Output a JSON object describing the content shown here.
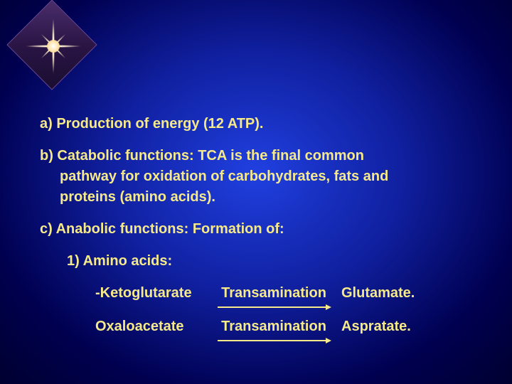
{
  "slide": {
    "text_color": "#f5e98a",
    "background": {
      "gradient": [
        "#2040e0",
        "#1020a0",
        "#000050",
        "#000030"
      ]
    },
    "decoration": {
      "type": "diamond-sparkle",
      "diamond_color": "#2a1545",
      "sparkle_color": "#ffffff"
    },
    "font": {
      "family": "Arial",
      "weight": "bold",
      "size_pt": 20
    },
    "items": {
      "a": "a) Production of energy (12 ATP).",
      "b_line1": "b)  Catabolic  functions:  TCA  is  the  final  common",
      "b_line2": "pathway for oxidation of carbohydrates, fats and",
      "b_line3": "proteins (amino acids).",
      "c": "c) Anabolic functions: Formation of:",
      "c_sub1": "1) Amino acids:"
    },
    "reactions": [
      {
        "substrate": "-Ketoglutarate",
        "process": "Transamination",
        "product": "Glutamate.",
        "arrow_color": "#f5e98a"
      },
      {
        "substrate": "Oxaloacetate",
        "process": "Transamination",
        "product": "Aspratate.",
        "arrow_color": "#f5e98a"
      }
    ]
  }
}
